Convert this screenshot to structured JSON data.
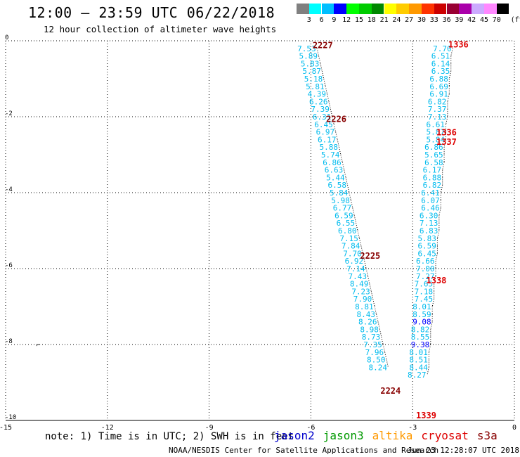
{
  "title": "12:00 – 23:59 UTC 06/22/2018",
  "subtitle": "12 hour collection of altimeter wave heights",
  "scale": {
    "labels": [
      "3",
      "6",
      "9",
      "12",
      "15",
      "18",
      "21",
      "24",
      "27",
      "30",
      "33",
      "36",
      "39",
      "42",
      "45",
      "70"
    ],
    "unit": "(ft)",
    "colors": [
      "#808080",
      "#00ffff",
      "#00bfff",
      "#0000ff",
      "#00ff00",
      "#00cc00",
      "#008800",
      "#ffff00",
      "#ffcc00",
      "#ff9900",
      "#ff3300",
      "#cc0000",
      "#990033",
      "#aa00aa",
      "#ccaaff",
      "#ff88ff",
      "#000000"
    ]
  },
  "axes": {
    "x_ticks": [
      "-15",
      "-12",
      "-9",
      "-6",
      "-3",
      "0"
    ],
    "y_ticks": [
      "0",
      "-2",
      "-4",
      "-6",
      "-8",
      "-10"
    ]
  },
  "note": "note:  1) Time is in UTC;  2) SWH is in feet",
  "missions": [
    {
      "name": "jason2",
      "color": "#0000cc"
    },
    {
      "name": "jason3",
      "color": "#009900"
    },
    {
      "name": "altika",
      "color": "#ff9900"
    },
    {
      "name": "cryosat",
      "color": "#dd0000"
    },
    {
      "name": "s3a",
      "color": "#880000"
    }
  ],
  "credit": "NOAA/NESDIS Center for Satellite Applications and Research",
  "timestamp": "Jun 23 12:28:07 UTC 2018",
  "land_marker": "⌐",
  "chart_data": {
    "type": "scatter",
    "xlim": [
      -15,
      0
    ],
    "ylim": [
      -10,
      0
    ],
    "grid": true,
    "time_labels": [
      {
        "text": "2227",
        "x": -5.95,
        "y": -0.1,
        "color": "#880000"
      },
      {
        "text": "2226",
        "x": -5.55,
        "y": -2.05,
        "color": "#880000"
      },
      {
        "text": "2225",
        "x": -4.55,
        "y": -5.65,
        "color": "#880000"
      },
      {
        "text": "2224",
        "x": -3.95,
        "y": -9.2,
        "color": "#880000"
      },
      {
        "text": "1336",
        "x": -1.95,
        "y": -0.08,
        "color": "#dd0000"
      },
      {
        "text": "1336",
        "x": -2.3,
        "y": -2.4,
        "color": "#dd0000"
      },
      {
        "text": "1337",
        "x": -2.3,
        "y": -2.65,
        "color": "#dd0000"
      },
      {
        "text": "1338",
        "x": -2.6,
        "y": -6.3,
        "color": "#dd0000"
      },
      {
        "text": "1339",
        "x": -2.9,
        "y": -9.85,
        "color": "#dd0000"
      }
    ],
    "series": [
      {
        "name": "s3a",
        "points": [
          {
            "x": -6.4,
            "y": -0.2,
            "v": "7.53",
            "c": "#00bbee"
          },
          {
            "x": -6.35,
            "y": -0.4,
            "v": "5.89",
            "c": "#00bbee"
          },
          {
            "x": -6.3,
            "y": -0.6,
            "v": "5.83",
            "c": "#00bbee"
          },
          {
            "x": -6.25,
            "y": -0.8,
            "v": "5.87",
            "c": "#00bbee"
          },
          {
            "x": -6.2,
            "y": -1.0,
            "v": "5.18",
            "c": "#00bbee"
          },
          {
            "x": -6.15,
            "y": -1.2,
            "v": "5.81",
            "c": "#00bbee"
          },
          {
            "x": -6.1,
            "y": -1.4,
            "v": "4.39",
            "c": "#00bbee"
          },
          {
            "x": -6.05,
            "y": -1.6,
            "v": "6.26",
            "c": "#00bbee"
          },
          {
            "x": -6.0,
            "y": -1.8,
            "v": "7.39",
            "c": "#00bbee"
          },
          {
            "x": -5.95,
            "y": -2.0,
            "v": "6.31",
            "c": "#00bbee"
          },
          {
            "x": -5.9,
            "y": -2.2,
            "v": "6.45",
            "c": "#00bbee"
          },
          {
            "x": -5.85,
            "y": -2.4,
            "v": "6.97",
            "c": "#00bbee"
          },
          {
            "x": -5.8,
            "y": -2.6,
            "v": "6.17",
            "c": "#00bbee"
          },
          {
            "x": -5.75,
            "y": -2.8,
            "v": "5.88",
            "c": "#00bbee"
          },
          {
            "x": -5.7,
            "y": -3.0,
            "v": "5.74",
            "c": "#00bbee"
          },
          {
            "x": -5.65,
            "y": -3.2,
            "v": "6.86",
            "c": "#00bbee"
          },
          {
            "x": -5.6,
            "y": -3.4,
            "v": "6.63",
            "c": "#00bbee"
          },
          {
            "x": -5.55,
            "y": -3.6,
            "v": "5.44",
            "c": "#00bbee"
          },
          {
            "x": -5.5,
            "y": -3.8,
            "v": "6.58",
            "c": "#00bbee"
          },
          {
            "x": -5.45,
            "y": -4.0,
            "v": "5.84",
            "c": "#00bbee"
          },
          {
            "x": -5.4,
            "y": -4.2,
            "v": "5.98",
            "c": "#00bbee"
          },
          {
            "x": -5.35,
            "y": -4.4,
            "v": "6.77",
            "c": "#00bbee"
          },
          {
            "x": -5.3,
            "y": -4.6,
            "v": "6.59",
            "c": "#00bbee"
          },
          {
            "x": -5.25,
            "y": -4.8,
            "v": "6.55",
            "c": "#00bbee"
          },
          {
            "x": -5.2,
            "y": -5.0,
            "v": "6.80",
            "c": "#00bbee"
          },
          {
            "x": -5.15,
            "y": -5.2,
            "v": "7.15",
            "c": "#00bbee"
          },
          {
            "x": -5.1,
            "y": -5.4,
            "v": "7.84",
            "c": "#00bbee"
          },
          {
            "x": -5.05,
            "y": -5.6,
            "v": "7.70",
            "c": "#00bbee"
          },
          {
            "x": -5.0,
            "y": -5.8,
            "v": "6.92",
            "c": "#00bbee"
          },
          {
            "x": -4.95,
            "y": -6.0,
            "v": "7.14",
            "c": "#00bbee"
          },
          {
            "x": -4.9,
            "y": -6.2,
            "v": "7.43",
            "c": "#00bbee"
          },
          {
            "x": -4.85,
            "y": -6.4,
            "v": "8.49",
            "c": "#00bbee"
          },
          {
            "x": -4.8,
            "y": -6.6,
            "v": "7.23",
            "c": "#00bbee"
          },
          {
            "x": -4.75,
            "y": -6.8,
            "v": "7.90",
            "c": "#00bbee"
          },
          {
            "x": -4.7,
            "y": -7.0,
            "v": "8.81",
            "c": "#00bbee"
          },
          {
            "x": -4.65,
            "y": -7.2,
            "v": "8.43",
            "c": "#00bbee"
          },
          {
            "x": -4.6,
            "y": -7.4,
            "v": "8.26",
            "c": "#00bbee"
          },
          {
            "x": -4.55,
            "y": -7.6,
            "v": "8.98",
            "c": "#00bbee"
          },
          {
            "x": -4.5,
            "y": -7.8,
            "v": "8.73",
            "c": "#00bbee"
          },
          {
            "x": -4.45,
            "y": -8.0,
            "v": "7.35",
            "c": "#00bbee"
          },
          {
            "x": -4.4,
            "y": -8.2,
            "v": "7.96",
            "c": "#00bbee"
          },
          {
            "x": -4.35,
            "y": -8.4,
            "v": "8.50",
            "c": "#00bbee"
          },
          {
            "x": -4.3,
            "y": -8.6,
            "v": "8.24",
            "c": "#00bbee"
          }
        ]
      },
      {
        "name": "cryosat",
        "points": [
          {
            "x": -2.4,
            "y": -0.2,
            "v": "7.70",
            "c": "#00bbee"
          },
          {
            "x": -2.45,
            "y": -0.4,
            "v": "6.51",
            "c": "#00bbee"
          },
          {
            "x": -2.45,
            "y": -0.6,
            "v": "6.14",
            "c": "#00bbee"
          },
          {
            "x": -2.45,
            "y": -0.8,
            "v": "6.35",
            "c": "#00bbee"
          },
          {
            "x": -2.5,
            "y": -1.0,
            "v": "6.88",
            "c": "#00bbee"
          },
          {
            "x": -2.5,
            "y": -1.2,
            "v": "6.69",
            "c": "#00bbee"
          },
          {
            "x": -2.5,
            "y": -1.4,
            "v": "6.91",
            "c": "#00bbee"
          },
          {
            "x": -2.55,
            "y": -1.6,
            "v": "6.82",
            "c": "#00bbee"
          },
          {
            "x": -2.55,
            "y": -1.8,
            "v": "7.37",
            "c": "#00bbee"
          },
          {
            "x": -2.55,
            "y": -2.0,
            "v": "7.13",
            "c": "#00bbee"
          },
          {
            "x": -2.6,
            "y": -2.2,
            "v": "6.61",
            "c": "#00bbee"
          },
          {
            "x": -2.6,
            "y": -2.4,
            "v": "5.87",
            "c": "#00bbee"
          },
          {
            "x": -2.6,
            "y": -2.6,
            "v": "5.84",
            "c": "#00bbee"
          },
          {
            "x": -2.65,
            "y": -2.8,
            "v": "6.86",
            "c": "#00bbee"
          },
          {
            "x": -2.65,
            "y": -3.0,
            "v": "5.65",
            "c": "#00bbee"
          },
          {
            "x": -2.65,
            "y": -3.2,
            "v": "6.58",
            "c": "#00bbee"
          },
          {
            "x": -2.7,
            "y": -3.4,
            "v": "6.17",
            "c": "#00bbee"
          },
          {
            "x": -2.7,
            "y": -3.6,
            "v": "6.88",
            "c": "#00bbee"
          },
          {
            "x": -2.7,
            "y": -3.8,
            "v": "6.82",
            "c": "#00bbee"
          },
          {
            "x": -2.75,
            "y": -4.0,
            "v": "6.41",
            "c": "#00bbee"
          },
          {
            "x": -2.75,
            "y": -4.2,
            "v": "6.07",
            "c": "#00bbee"
          },
          {
            "x": -2.75,
            "y": -4.4,
            "v": "6.46",
            "c": "#00bbee"
          },
          {
            "x": -2.8,
            "y": -4.6,
            "v": "6.30",
            "c": "#00bbee"
          },
          {
            "x": -2.8,
            "y": -4.8,
            "v": "7.13",
            "c": "#00bbee"
          },
          {
            "x": -2.8,
            "y": -5.0,
            "v": "6.83",
            "c": "#00bbee"
          },
          {
            "x": -2.85,
            "y": -5.2,
            "v": "5.83",
            "c": "#00bbee"
          },
          {
            "x": -2.85,
            "y": -5.4,
            "v": "6.59",
            "c": "#00bbee"
          },
          {
            "x": -2.85,
            "y": -5.6,
            "v": "6.45",
            "c": "#00bbee"
          },
          {
            "x": -2.9,
            "y": -5.8,
            "v": "6.66",
            "c": "#00bbee"
          },
          {
            "x": -2.9,
            "y": -6.0,
            "v": "7.00",
            "c": "#00bbee"
          },
          {
            "x": -2.9,
            "y": -6.2,
            "v": "7.27",
            "c": "#00bbee"
          },
          {
            "x": -2.95,
            "y": -6.4,
            "v": "7.65",
            "c": "#00bbee"
          },
          {
            "x": -2.95,
            "y": -6.6,
            "v": "7.18",
            "c": "#00bbee"
          },
          {
            "x": -2.95,
            "y": -6.8,
            "v": "7.45",
            "c": "#00bbee"
          },
          {
            "x": -3.0,
            "y": -7.0,
            "v": "8.01",
            "c": "#00bbee"
          },
          {
            "x": -3.0,
            "y": -7.2,
            "v": "8.59",
            "c": "#00bbee"
          },
          {
            "x": -3.0,
            "y": -7.4,
            "v": "9.08",
            "c": "#0000ff"
          },
          {
            "x": -3.05,
            "y": -7.6,
            "v": "8.82",
            "c": "#00bbee"
          },
          {
            "x": -3.05,
            "y": -7.8,
            "v": "8.55",
            "c": "#00bbee"
          },
          {
            "x": -3.05,
            "y": -8.0,
            "v": "9.38",
            "c": "#0000ff"
          },
          {
            "x": -3.1,
            "y": -8.2,
            "v": "8.01",
            "c": "#00bbee"
          },
          {
            "x": -3.1,
            "y": -8.4,
            "v": "8.51",
            "c": "#00bbee"
          },
          {
            "x": -3.1,
            "y": -8.6,
            "v": "8.44",
            "c": "#00bbee"
          },
          {
            "x": -3.15,
            "y": -8.8,
            "v": "8.27",
            "c": "#00bbee"
          }
        ]
      }
    ]
  }
}
